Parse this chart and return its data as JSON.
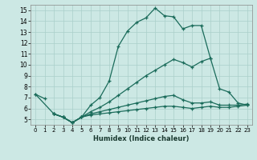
{
  "xlabel": "Humidex (Indice chaleur)",
  "background_color": "#cce8e4",
  "grid_color": "#aacfca",
  "line_color": "#1a6b5a",
  "xlim": [
    -0.5,
    23.5
  ],
  "ylim": [
    4.5,
    15.5
  ],
  "xticks": [
    0,
    1,
    2,
    3,
    4,
    5,
    6,
    7,
    8,
    9,
    10,
    11,
    12,
    13,
    14,
    15,
    16,
    17,
    18,
    19,
    20,
    21,
    22,
    23
  ],
  "yticks": [
    5,
    6,
    7,
    8,
    9,
    10,
    11,
    12,
    13,
    14,
    15
  ],
  "series": [
    {
      "x": [
        0,
        1
      ],
      "y": [
        7.3,
        6.9
      ]
    },
    {
      "x": [
        0,
        2,
        3,
        4,
        5,
        6,
        7,
        8,
        9,
        10,
        11,
        12,
        13,
        14,
        15,
        16,
        17,
        18,
        19
      ],
      "y": [
        7.3,
        5.5,
        5.2,
        4.7,
        5.2,
        6.3,
        7.0,
        8.5,
        11.7,
        13.1,
        13.9,
        14.3,
        15.2,
        14.5,
        14.4,
        13.3,
        13.6,
        13.6,
        10.6
      ]
    },
    {
      "x": [
        2,
        3,
        4,
        5,
        6,
        7,
        8,
        9,
        10,
        11,
        12,
        13,
        14,
        15,
        16,
        17,
        18,
        19,
        20,
        21,
        22,
        23
      ],
      "y": [
        5.5,
        5.2,
        4.7,
        5.2,
        5.7,
        6.1,
        6.6,
        7.2,
        7.8,
        8.4,
        9.0,
        9.5,
        10.0,
        10.5,
        10.2,
        9.8,
        10.3,
        10.6,
        7.8,
        7.5,
        6.5,
        6.3
      ]
    },
    {
      "x": [
        2,
        3,
        4,
        5,
        6,
        7,
        8,
        9,
        10,
        11,
        12,
        13,
        14,
        15,
        16,
        17,
        18,
        19,
        20,
        21,
        22,
        23
      ],
      "y": [
        5.5,
        5.2,
        4.7,
        5.2,
        5.5,
        5.7,
        5.9,
        6.1,
        6.3,
        6.5,
        6.7,
        6.9,
        7.1,
        7.2,
        6.8,
        6.5,
        6.5,
        6.6,
        6.3,
        6.3,
        6.3,
        6.4
      ]
    },
    {
      "x": [
        2,
        3,
        4,
        5,
        6,
        7,
        8,
        9,
        10,
        11,
        12,
        13,
        14,
        15,
        16,
        17,
        18,
        19,
        20,
        21,
        22,
        23
      ],
      "y": [
        5.5,
        5.2,
        4.7,
        5.2,
        5.4,
        5.5,
        5.6,
        5.7,
        5.8,
        5.9,
        6.0,
        6.1,
        6.2,
        6.2,
        6.1,
        6.0,
        6.1,
        6.2,
        6.1,
        6.1,
        6.2,
        6.3
      ]
    }
  ]
}
